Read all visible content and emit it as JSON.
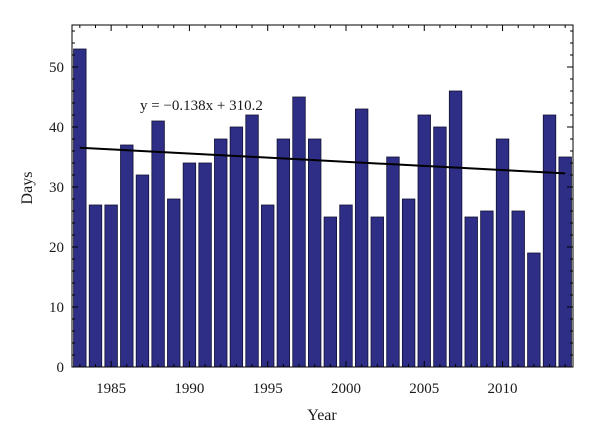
{
  "chart_data": {
    "type": "bar",
    "xlabel": "Year",
    "ylabel": "Days",
    "x": [
      1983,
      1984,
      1985,
      1986,
      1987,
      1988,
      1989,
      1990,
      1991,
      1992,
      1993,
      1994,
      1995,
      1996,
      1997,
      1998,
      1999,
      2000,
      2001,
      2002,
      2003,
      2004,
      2005,
      2006,
      2007,
      2008,
      2009,
      2010,
      2011,
      2012,
      2013,
      2014
    ],
    "values": [
      53,
      27,
      27,
      37,
      32,
      41,
      28,
      34,
      34,
      38,
      40,
      42,
      27,
      38,
      45,
      38,
      25,
      27,
      43,
      25,
      35,
      28,
      42,
      40,
      46,
      25,
      26,
      38,
      26,
      19,
      42,
      35
    ],
    "ylim": [
      0,
      57
    ],
    "xlim": [
      1982.5,
      2014.5
    ],
    "yticks": [
      0,
      10,
      20,
      30,
      40,
      50
    ],
    "xticks": [
      1985,
      1990,
      1995,
      2000,
      2005,
      2010
    ],
    "bar_color": "#2e2e86",
    "trendline": {
      "slope": -0.138,
      "intercept": 310.2,
      "x_range": [
        1983,
        2014
      ],
      "equation": "y = −0.138x + 310.2"
    },
    "grid": false,
    "legend": "none"
  }
}
